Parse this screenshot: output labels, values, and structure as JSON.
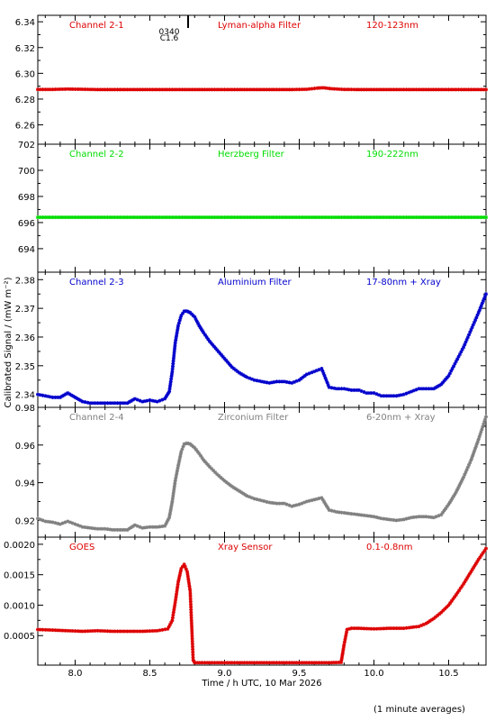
{
  "figure": {
    "ylabel": "Calibrated Signal / (mW m⁻²)",
    "xlabel": "Time / h UTC, 10 Mar 2026",
    "footnote": "(1 minute averages)",
    "flare_marker": {
      "time_label": "0340",
      "class_label": "C1.6",
      "x": 8.78
    }
  },
  "colors": {
    "red": "#dd0000",
    "green": "#00dd00",
    "blue": "#0000cc",
    "gray": "#808080",
    "black": "#000000"
  },
  "chart_data": [
    {
      "type": "scatter",
      "channel": "Channel 2-1",
      "filter": "Lyman-alpha Filter",
      "band": "120-123nm",
      "color": "#dd0000",
      "xlim": [
        7.75,
        10.75
      ],
      "ylim": [
        6.245,
        6.345
      ],
      "yticks": [
        "6.26",
        "6.28",
        "6.30",
        "6.32",
        "6.34"
      ],
      "ytick_values": [
        6.26,
        6.28,
        6.3,
        6.32,
        6.34
      ],
      "x": [
        7.75,
        7.85,
        7.95,
        8.05,
        8.15,
        8.25,
        8.35,
        8.45,
        8.55,
        8.65,
        8.75,
        8.85,
        8.95,
        9.05,
        9.15,
        9.25,
        9.35,
        9.45,
        9.55,
        9.62,
        9.66,
        9.72,
        9.8,
        9.9,
        10.0,
        10.1,
        10.2,
        10.3,
        10.4,
        10.5,
        10.6,
        10.7,
        10.75
      ],
      "y": [
        6.2875,
        6.2875,
        6.2878,
        6.2876,
        6.2874,
        6.2874,
        6.2874,
        6.2874,
        6.2874,
        6.2874,
        6.2874,
        6.2874,
        6.2874,
        6.2874,
        6.2874,
        6.2874,
        6.2874,
        6.2874,
        6.2876,
        6.2885,
        6.2888,
        6.288,
        6.2875,
        6.2874,
        6.2874,
        6.2874,
        6.2874,
        6.2874,
        6.2874,
        6.2874,
        6.2874,
        6.2874,
        6.2874
      ]
    },
    {
      "type": "scatter",
      "channel": "Channel 2-2",
      "filter": "Herzberg Filter",
      "band": "190-222nm",
      "color": "#00dd00",
      "xlim": [
        7.75,
        10.75
      ],
      "ylim": [
        692.2,
        702.0
      ],
      "yticks": [
        "694",
        "696",
        "698",
        "700",
        "702"
      ],
      "ytick_values": [
        694,
        696,
        698,
        700,
        702
      ],
      "x": [
        7.75,
        7.95,
        8.15,
        8.35,
        8.55,
        8.75,
        8.95,
        9.15,
        9.35,
        9.55,
        9.75,
        9.95,
        10.15,
        10.35,
        10.55,
        10.75
      ],
      "y": [
        696.4,
        696.4,
        696.4,
        696.4,
        696.4,
        696.4,
        696.4,
        696.4,
        696.4,
        696.4,
        696.4,
        696.4,
        696.4,
        696.4,
        696.4,
        696.4
      ]
    },
    {
      "type": "scatter",
      "channel": "Channel 2-3",
      "filter": "Aluminium Filter",
      "band": "17-80nm + Xray",
      "color": "#0000cc",
      "xlim": [
        7.75,
        10.75
      ],
      "ylim": [
        2.3355,
        2.3826
      ],
      "yticks": [
        "2.34",
        "2.35",
        "2.36",
        "2.37",
        "2.38"
      ],
      "ytick_values": [
        2.34,
        2.35,
        2.36,
        2.37,
        2.38
      ],
      "x": [
        7.75,
        7.8,
        7.85,
        7.9,
        7.95,
        8.0,
        8.05,
        8.1,
        8.15,
        8.2,
        8.25,
        8.3,
        8.35,
        8.4,
        8.45,
        8.5,
        8.55,
        8.6,
        8.63,
        8.65,
        8.67,
        8.69,
        8.71,
        8.73,
        8.75,
        8.77,
        8.8,
        8.83,
        8.86,
        8.9,
        8.95,
        9.0,
        9.05,
        9.1,
        9.15,
        9.2,
        9.25,
        9.3,
        9.35,
        9.4,
        9.45,
        9.5,
        9.55,
        9.6,
        9.65,
        9.7,
        9.75,
        9.8,
        9.85,
        9.9,
        9.95,
        10.0,
        10.05,
        10.1,
        10.15,
        10.2,
        10.25,
        10.3,
        10.35,
        10.4,
        10.45,
        10.5,
        10.55,
        10.6,
        10.65,
        10.7,
        10.75
      ],
      "y": [
        2.34,
        2.3395,
        2.339,
        2.339,
        2.3405,
        2.339,
        2.3375,
        2.337,
        2.337,
        2.337,
        2.337,
        2.337,
        2.337,
        2.3385,
        2.3375,
        2.338,
        2.3375,
        2.3385,
        2.341,
        2.348,
        2.358,
        2.364,
        2.3675,
        2.369,
        2.369,
        2.3685,
        2.367,
        2.364,
        2.3615,
        2.3585,
        2.3555,
        2.3525,
        2.3495,
        2.3475,
        2.346,
        2.345,
        2.3445,
        2.344,
        2.3445,
        2.3445,
        2.344,
        2.345,
        2.347,
        2.348,
        2.349,
        2.3425,
        2.342,
        2.342,
        2.3415,
        2.3415,
        2.3405,
        2.3405,
        2.3395,
        2.3395,
        2.3395,
        2.34,
        2.341,
        2.342,
        2.342,
        2.342,
        2.3435,
        2.3465,
        2.3515,
        2.3565,
        2.3625,
        2.3685,
        2.375
      ]
    },
    {
      "type": "scatter",
      "channel": "Channel 2-4",
      "filter": "Zirconium Filter",
      "band": "6-20nm + Xray",
      "color": "#808080",
      "xlim": [
        7.75,
        10.75
      ],
      "ylim": [
        0.9111,
        0.98
      ],
      "yticks": [
        "0.92",
        "0.94",
        "0.96",
        "0.98"
      ],
      "ytick_values": [
        0.92,
        0.94,
        0.96,
        0.98
      ],
      "x": [
        7.75,
        7.8,
        7.85,
        7.9,
        7.95,
        8.0,
        8.05,
        8.1,
        8.15,
        8.2,
        8.25,
        8.3,
        8.35,
        8.4,
        8.45,
        8.5,
        8.55,
        8.6,
        8.63,
        8.65,
        8.67,
        8.69,
        8.71,
        8.73,
        8.75,
        8.77,
        8.8,
        8.83,
        8.86,
        8.9,
        8.95,
        9.0,
        9.05,
        9.1,
        9.15,
        9.2,
        9.25,
        9.3,
        9.35,
        9.4,
        9.45,
        9.5,
        9.55,
        9.6,
        9.65,
        9.7,
        9.75,
        9.8,
        9.85,
        9.9,
        9.95,
        10.0,
        10.05,
        10.1,
        10.15,
        10.2,
        10.25,
        10.3,
        10.35,
        10.4,
        10.45,
        10.5,
        10.55,
        10.6,
        10.65,
        10.7,
        10.75
      ],
      "y": [
        0.921,
        0.9195,
        0.919,
        0.918,
        0.9195,
        0.918,
        0.9165,
        0.916,
        0.9155,
        0.9155,
        0.915,
        0.915,
        0.915,
        0.9175,
        0.916,
        0.9165,
        0.9165,
        0.917,
        0.9215,
        0.93,
        0.941,
        0.949,
        0.9565,
        0.9605,
        0.961,
        0.9605,
        0.9585,
        0.9555,
        0.952,
        0.9485,
        0.9445,
        0.941,
        0.938,
        0.9355,
        0.933,
        0.9315,
        0.9305,
        0.9295,
        0.929,
        0.929,
        0.9275,
        0.9285,
        0.93,
        0.931,
        0.932,
        0.9255,
        0.9245,
        0.924,
        0.9235,
        0.923,
        0.9225,
        0.922,
        0.921,
        0.9205,
        0.92,
        0.9205,
        0.9215,
        0.922,
        0.922,
        0.9215,
        0.923,
        0.9285,
        0.935,
        0.943,
        0.952,
        0.963,
        0.975
      ]
    },
    {
      "type": "scatter",
      "channel": "GOES",
      "filter": "Xray Sensor",
      "band": "0.1-0.8nm",
      "color": "#dd0000",
      "xlim": [
        7.75,
        10.75
      ],
      "ylim": [
        1.5e-05,
        0.002117
      ],
      "yticks": [
        "0.0005",
        "0.0010",
        "0.0015",
        "0.0020"
      ],
      "ytick_values": [
        0.0005,
        0.001,
        0.0015,
        0.002
      ],
      "x": [
        7.75,
        7.85,
        7.95,
        8.05,
        8.15,
        8.25,
        8.35,
        8.45,
        8.55,
        8.62,
        8.65,
        8.67,
        8.69,
        8.71,
        8.73,
        8.75,
        8.77,
        8.79,
        8.8,
        8.9,
        9.0,
        9.1,
        9.2,
        9.3,
        9.4,
        9.5,
        9.6,
        9.7,
        9.78,
        9.79,
        9.8,
        9.82,
        9.85,
        9.9,
        10.0,
        10.1,
        10.2,
        10.3,
        10.35,
        10.4,
        10.45,
        10.5,
        10.55,
        10.6,
        10.65,
        10.7,
        10.75
      ],
      "y": [
        0.0006,
        0.00059,
        0.00058,
        0.00057,
        0.00058,
        0.00057,
        0.00057,
        0.00057,
        0.00058,
        0.00061,
        0.00075,
        0.00105,
        0.00138,
        0.0016,
        0.00167,
        0.00155,
        0.00123,
        0.0001,
        5.5e-05,
        5.5e-05,
        5.5e-05,
        5.5e-05,
        5.5e-05,
        5.5e-05,
        5.5e-05,
        5.5e-05,
        5.5e-05,
        5.5e-05,
        6e-05,
        0.0002,
        0.00035,
        0.0006,
        0.00062,
        0.00062,
        0.00061,
        0.00062,
        0.00062,
        0.00065,
        0.0007,
        0.00078,
        0.00088,
        0.001,
        0.00117,
        0.00135,
        0.00155,
        0.00175,
        0.00193
      ]
    }
  ],
  "xticks": [
    "8.0",
    "8.5",
    "9.0",
    "9.5",
    "10.0",
    "10.5"
  ],
  "xtick_values": [
    8.0,
    8.5,
    9.0,
    9.5,
    10.0,
    10.5
  ]
}
